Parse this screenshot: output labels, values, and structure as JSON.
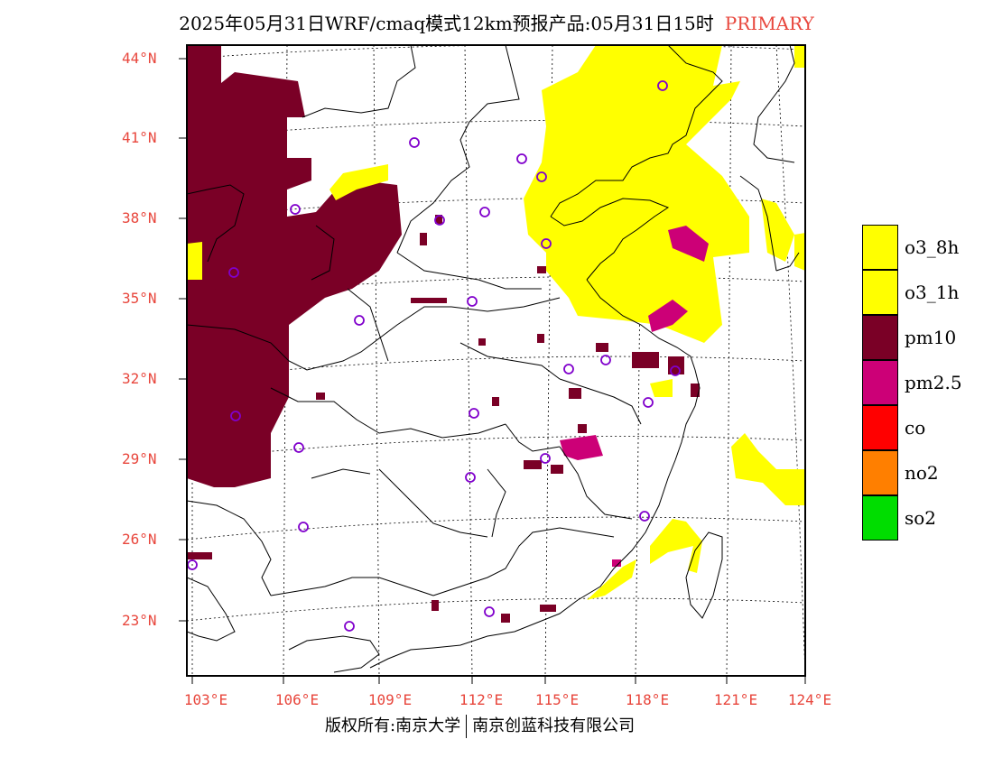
{
  "title": {
    "main": "2025年05月31日WRF/cmaq模式12km预报产品:05月31日15时",
    "tag": "PRIMARY"
  },
  "lat_labels": [
    "44°N",
    "41°N",
    "38°N",
    "35°N",
    "32°N",
    "29°N",
    "26°N",
    "23°N"
  ],
  "lon_labels": [
    "103°E",
    "106°E",
    "109°E",
    "112°E",
    "115°E",
    "118°E",
    "121°E",
    "124°E"
  ],
  "legend": [
    {
      "label": "o3_8h",
      "color": "#ffff00"
    },
    {
      "label": "o3_1h",
      "color": "#ffff00"
    },
    {
      "label": "pm10",
      "color": "#7a0026"
    },
    {
      "label": "pm2.5",
      "color": "#cc0077"
    },
    {
      "label": "co",
      "color": "#ff0000"
    },
    {
      "label": "no2",
      "color": "#ff7f00"
    },
    {
      "label": "so2",
      "color": "#00dd00"
    }
  ],
  "footer": {
    "left": "版权所有:南京大学",
    "right": "南京创蓝科技有限公司"
  }
}
